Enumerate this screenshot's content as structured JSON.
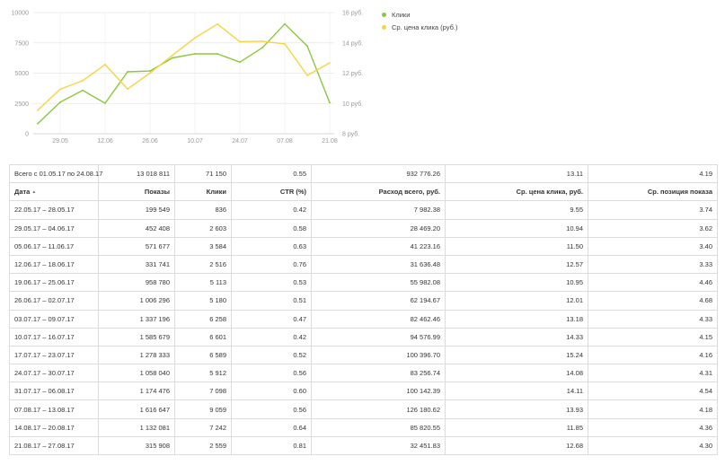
{
  "chart_data": {
    "type": "line",
    "categories": [
      "22.05",
      "29.05",
      "05.06",
      "12.06",
      "19.06",
      "26.06",
      "03.07",
      "10.07",
      "17.07",
      "24.07",
      "31.07",
      "07.08",
      "14.08",
      "21.08"
    ],
    "x_tick_labels": [
      "29.05",
      "12.06",
      "26.06",
      "10.07",
      "24.07",
      "07.08",
      "21.08"
    ],
    "y_left_ticks": [
      "0",
      "2500",
      "5000",
      "7500",
      "10000"
    ],
    "y_right_ticks": [
      "8 руб.",
      "10 руб.",
      "12 руб.",
      "14 руб.",
      "16 руб."
    ],
    "y_left_range": [
      0,
      10000
    ],
    "y_right_range": [
      8,
      16
    ],
    "grid": true,
    "legend_position": "right",
    "series": [
      {
        "name": "Клики",
        "axis": "left",
        "color": "#8dc63f",
        "values": [
          836,
          2603,
          3584,
          2516,
          5113,
          5180,
          6258,
          6601,
          6589,
          5912,
          7098,
          9059,
          7242,
          2559
        ]
      },
      {
        "name": "Ср. цена клика (руб.)",
        "axis": "right",
        "color": "#f5d442",
        "values": [
          9.55,
          10.94,
          11.5,
          12.57,
          10.95,
          12.01,
          13.18,
          14.33,
          15.24,
          14.08,
          14.11,
          13.93,
          11.85,
          12.68
        ]
      }
    ]
  },
  "table": {
    "total_row": {
      "label": "Всего с 01.05.17 по 24.08.17",
      "cells": [
        "13 018 811",
        "71 150",
        "0.55",
        "932 776.26",
        "13.11",
        "4.19"
      ]
    },
    "headers": [
      "Дата",
      "Показы",
      "Клики",
      "CTR (%)",
      "Расход всего, руб.",
      "Ср. цена клика, руб.",
      "Ср. позиция показа"
    ],
    "sort_indicator": "▲",
    "rows": [
      [
        "22.05.17 – 28.05.17",
        "199 549",
        "836",
        "0.42",
        "7 982.38",
        "9.55",
        "3.74"
      ],
      [
        "29.05.17 – 04.06.17",
        "452 408",
        "2 603",
        "0.58",
        "28 469.20",
        "10.94",
        "3.62"
      ],
      [
        "05.06.17 – 11.06.17",
        "571 677",
        "3 584",
        "0.63",
        "41 223.16",
        "11.50",
        "3.40"
      ],
      [
        "12.06.17 – 18.06.17",
        "331 741",
        "2 516",
        "0.76",
        "31 636.48",
        "12.57",
        "3.33"
      ],
      [
        "19.06.17 – 25.06.17",
        "958 780",
        "5 113",
        "0.53",
        "55 982.08",
        "10.95",
        "4.46"
      ],
      [
        "26.06.17 – 02.07.17",
        "1 006 296",
        "5 180",
        "0.51",
        "62 194.67",
        "12.01",
        "4.68"
      ],
      [
        "03.07.17 – 09.07.17",
        "1 337 196",
        "6 258",
        "0.47",
        "82 462.46",
        "13.18",
        "4.33"
      ],
      [
        "10.07.17 – 16.07.17",
        "1 585 679",
        "6 601",
        "0.42",
        "94 576.99",
        "14.33",
        "4.15"
      ],
      [
        "17.07.17 – 23.07.17",
        "1 278 333",
        "6 589",
        "0.52",
        "100 396.70",
        "15.24",
        "4.16"
      ],
      [
        "24.07.17 – 30.07.17",
        "1 058 040",
        "5 912",
        "0.56",
        "83 256.74",
        "14.08",
        "4.31"
      ],
      [
        "31.07.17 – 06.08.17",
        "1 174 476",
        "7 098",
        "0.60",
        "100 142.39",
        "14.11",
        "4.54"
      ],
      [
        "07.08.17 – 13.08.17",
        "1 616 647",
        "9 059",
        "0.56",
        "126 180.62",
        "13.93",
        "4.18"
      ],
      [
        "14.08.17 – 20.08.17",
        "1 132 081",
        "7 242",
        "0.64",
        "85 820.55",
        "11.85",
        "4.36"
      ],
      [
        "21.08.17 – 27.08.17",
        "315 908",
        "2 559",
        "0.81",
        "32 451.83",
        "12.68",
        "4.30"
      ]
    ]
  }
}
